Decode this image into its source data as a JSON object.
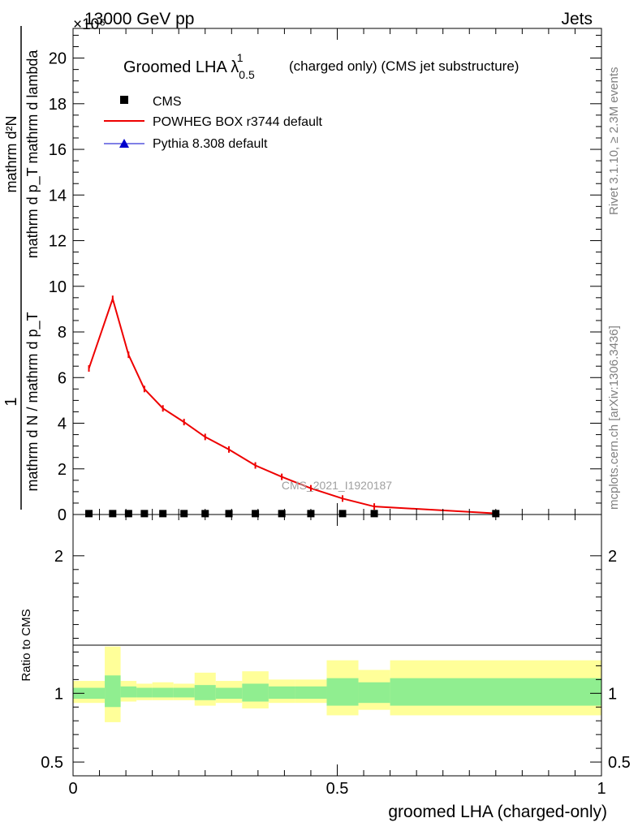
{
  "header": {
    "energy_label": "13000 GeV pp",
    "process_label": "Jets",
    "multiplier": "×10⁶"
  },
  "side_labels": {
    "rivet": "Rivet 3.1.10, ≥ 2.3M events",
    "mcplots": "mcplots.cern.ch [arXiv:1306.3436]"
  },
  "watermark": "CMS_2021_I1920187",
  "chart_data": [
    {
      "type": "line",
      "title": "Groomed LHA λ",
      "title_sup": "1",
      "title_sub": "0.5",
      "title_suffix": "(charged only) (CMS jet substructure)",
      "ylabel_numerator": "1",
      "ylabel_frac_top": "mathrm d²N",
      "ylabel_frac_bottom": "mathrm d p_T mathrm d lambda",
      "ylabel_denominator": "mathrm d N / mathrm d p_T",
      "y_multiplier": "×10⁶",
      "xlim": [
        0,
        1
      ],
      "ylim": [
        0,
        21.3
      ],
      "y_ticks": [
        0,
        2,
        4,
        6,
        8,
        10,
        12,
        14,
        16,
        18,
        20
      ],
      "legend_position": "top-left",
      "series": [
        {
          "name": "CMS",
          "marker": "square",
          "color": "#000000",
          "x": [
            0.03,
            0.075,
            0.105,
            0.135,
            0.17,
            0.21,
            0.25,
            0.295,
            0.345,
            0.395,
            0.45,
            0.51,
            0.57,
            0.8
          ],
          "y": [
            0.04,
            0.04,
            0.04,
            0.04,
            0.04,
            0.04,
            0.04,
            0.04,
            0.04,
            0.04,
            0.04,
            0.04,
            0.04,
            0.04
          ]
        },
        {
          "name": "POWHEG BOX r3744 default",
          "marker": "line",
          "color": "#ee0000",
          "x": [
            0.03,
            0.075,
            0.105,
            0.135,
            0.17,
            0.21,
            0.25,
            0.295,
            0.345,
            0.395,
            0.45,
            0.51,
            0.57,
            0.8
          ],
          "y": [
            6.4,
            9.45,
            7.0,
            5.5,
            4.65,
            4.05,
            3.4,
            2.85,
            2.15,
            1.65,
            1.15,
            0.7,
            0.35,
            0.05
          ]
        },
        {
          "name": "Pythia 8.308 default",
          "marker": "triangle",
          "color": "#0000cc",
          "x": [],
          "y": []
        }
      ]
    },
    {
      "type": "area",
      "ylabel": "Ratio to CMS",
      "xlabel": "groomed LHA (charged-only)",
      "xlim": [
        0,
        1
      ],
      "ylim": [
        0.4,
        2.3
      ],
      "y_ticks": [
        0.5,
        1,
        2
      ],
      "y_tick_labels": [
        "0.5",
        "1",
        "2"
      ],
      "x_ticks": [
        0,
        0.5,
        1
      ],
      "x_tick_labels": [
        "0",
        "0.5",
        "1"
      ],
      "bins": [
        0,
        0.06,
        0.09,
        0.12,
        0.15,
        0.19,
        0.23,
        0.27,
        0.32,
        0.37,
        0.42,
        0.48,
        0.54,
        0.6,
        1.0
      ],
      "stat_band": {
        "color": "#90ee90",
        "lo": [
          0.96,
          0.9,
          0.97,
          0.97,
          0.97,
          0.97,
          0.95,
          0.96,
          0.94,
          0.96,
          0.96,
          0.91,
          0.93,
          0.91
        ],
        "hi": [
          1.04,
          1.13,
          1.05,
          1.04,
          1.04,
          1.04,
          1.06,
          1.04,
          1.07,
          1.05,
          1.05,
          1.11,
          1.08,
          1.11
        ]
      },
      "total_band": {
        "color": "#ffff99",
        "lo": [
          0.93,
          0.79,
          0.94,
          0.95,
          0.95,
          0.95,
          0.91,
          0.93,
          0.89,
          0.93,
          0.93,
          0.84,
          0.88,
          0.84
        ],
        "hi": [
          1.09,
          1.34,
          1.09,
          1.07,
          1.08,
          1.07,
          1.15,
          1.09,
          1.16,
          1.1,
          1.1,
          1.24,
          1.17,
          1.24
        ]
      }
    }
  ]
}
